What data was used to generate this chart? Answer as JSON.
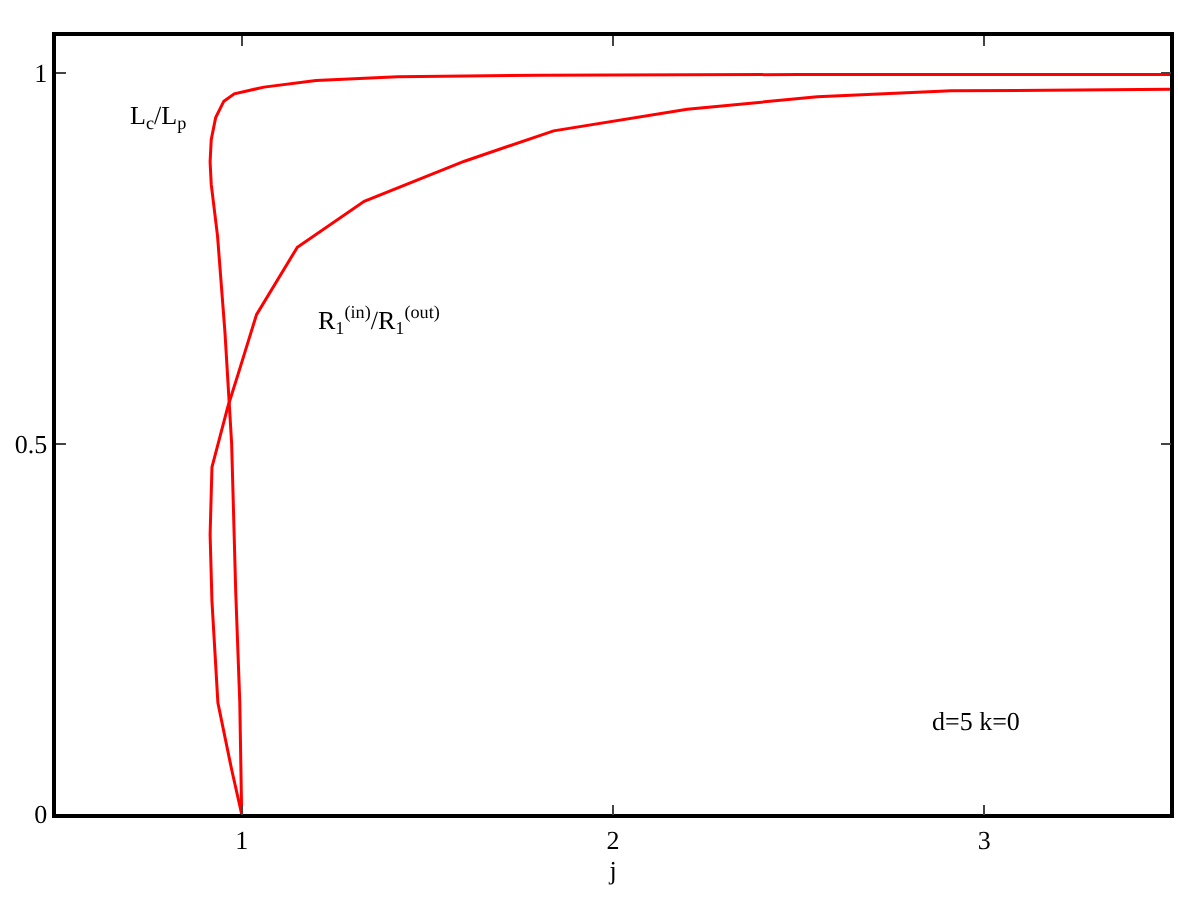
{
  "chart_data": {
    "type": "line",
    "xlabel": "j",
    "xlim": [
      0.5,
      3.5
    ],
    "ylim": [
      0,
      1.05
    ],
    "xticks": [
      1,
      2,
      3
    ],
    "yticks": [
      0,
      0.5,
      1
    ],
    "marker": "none",
    "line_style": "solid",
    "series": [
      {
        "color": "#ff0000",
        "x": [
          1.0,
          0.995,
          0.984,
          0.973,
          0.955,
          0.935,
          0.918,
          0.915,
          0.918,
          0.93,
          0.952,
          0.98,
          1.06,
          1.2,
          1.42,
          1.8,
          2.5,
          3.5
        ],
        "values": [
          0,
          0.15,
          0.3,
          0.5,
          0.65,
          0.78,
          0.85,
          0.88,
          0.91,
          0.94,
          0.962,
          0.972,
          0.981,
          0.99,
          0.995,
          0.997,
          0.998,
          0.998
        ]
      },
      {
        "color": "#ff0000",
        "x": [
          1.0,
          0.973,
          0.936,
          0.92,
          0.915,
          0.92,
          0.963,
          0.99,
          1.04,
          1.15,
          1.33,
          1.6,
          1.84,
          2.2,
          2.55,
          2.91,
          3.5
        ],
        "values": [
          0,
          0.06,
          0.15,
          0.287,
          0.377,
          0.468,
          0.55,
          0.593,
          0.674,
          0.765,
          0.827,
          0.881,
          0.922,
          0.951,
          0.968,
          0.976,
          0.978
        ]
      }
    ],
    "annotations": [
      "L$_{c}$/L$_{p}$",
      "R$_{1}$$^{(in)}$/R$_{1}$$^{(out)}$",
      "d=5 k=0"
    ]
  }
}
